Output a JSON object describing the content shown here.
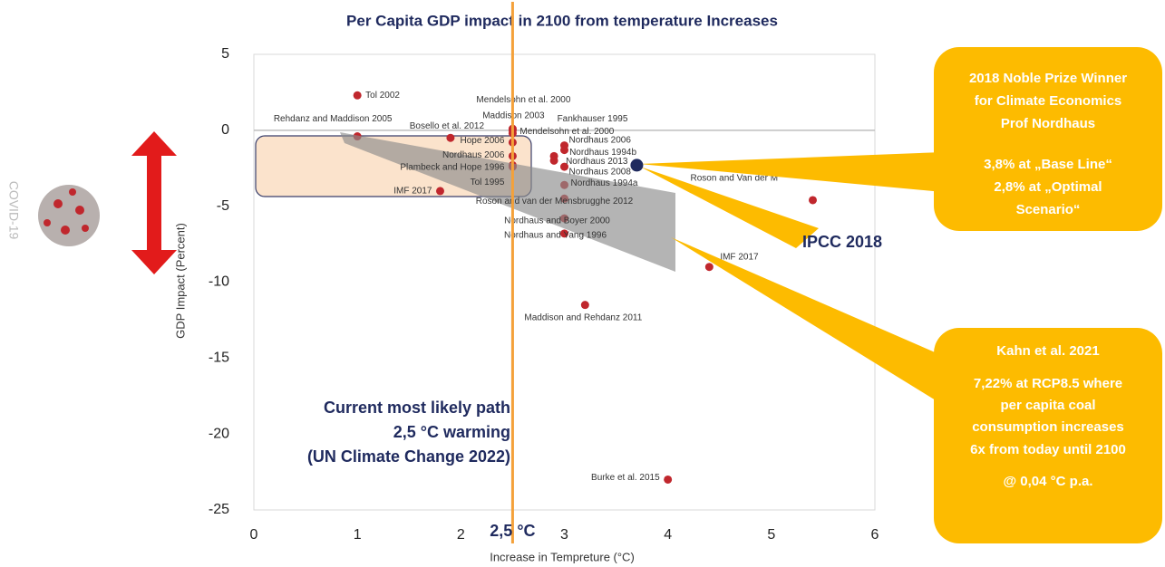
{
  "chart_data": {
    "type": "scatter",
    "title": "Per Capita GDP impact in 2100 from temperature Increases",
    "x_label": "Increase in Tempreture (°C)",
    "y_label": "GDP Impact (Percent)",
    "xlim": [
      0,
      6
    ],
    "ylim": [
      -25,
      5
    ],
    "xticks": [
      0,
      1,
      2,
      3,
      4,
      5,
      6
    ],
    "yticks": [
      5,
      0,
      -5,
      -10,
      -15,
      -20,
      -25
    ],
    "zero_line": true,
    "color": "#c0272d",
    "x": [
      1.0,
      1.0,
      1.9,
      2.5,
      2.5,
      2.5,
      2.5,
      2.5,
      2.5,
      2.5,
      1.8,
      3.0,
      3.0,
      2.9,
      2.9,
      3.0,
      3.0,
      3.0,
      3.0,
      3.0,
      5.4,
      4.4,
      3.2,
      4.0
    ],
    "values": [
      2.3,
      -0.4,
      -0.5,
      0.1,
      0.0,
      -0.2,
      -0.8,
      -1.7,
      -2.4,
      -2.3,
      -4.0,
      -1.0,
      -1.3,
      -1.7,
      -2.0,
      -2.4,
      -3.6,
      -4.5,
      -5.8,
      -6.8,
      -4.6,
      -9.0,
      -11.5,
      -23.0
    ],
    "point_labels": [
      "Tol 2002",
      "Rehdanz and Maddison 2005",
      "Bosello et al. 2012",
      "Mendelsohn et al. 2000",
      "Maddison 2003",
      "Mendelsohn et al. 2000",
      "Hope 2006",
      "Nordhaus 2006",
      "Plambeck and Hope 1996",
      "Tol 1995",
      "IMF 2017",
      "Fankhauser 1995",
      "Nordhaus 2006",
      "Nordhaus 1994b",
      "Nordhaus 2013",
      "Nordhaus 2008",
      "Nordhaus 1994a",
      "Roson and van der Mensbrugghe 2012",
      "Nordhaus and Boyer 2000",
      "Nordhaus and Yang 1996",
      "Roson and Van der M",
      "IMF 2017",
      "Maddison and Rehdanz 2011",
      "Burke et al. 2015"
    ],
    "highlight": {
      "name": "IPCC 2018",
      "x": 3.7,
      "y": -2.3,
      "color": "#1f2a5e"
    },
    "reference_line": {
      "x": 2.5,
      "label": "2,5 °C",
      "color": "#f4a13a"
    },
    "path_note": [
      "Current most likely path",
      "2,5 °C warming",
      "(UN Climate Change 2022)"
    ],
    "callout_1": [
      "2018 Noble Prize Winner",
      "for Climate Economics",
      "Prof Nordhaus",
      "3,8% at „Base Line“",
      "2,8% at „Optimal",
      "Scenario“"
    ],
    "callout_2": [
      "Kahn et al. 2021",
      "7,22% at RCP8.5 where",
      "per capita coal",
      "consumption increases",
      "6x from today until 2100",
      "@ 0,04 °C p.a."
    ],
    "side_label": "COVID-19"
  }
}
